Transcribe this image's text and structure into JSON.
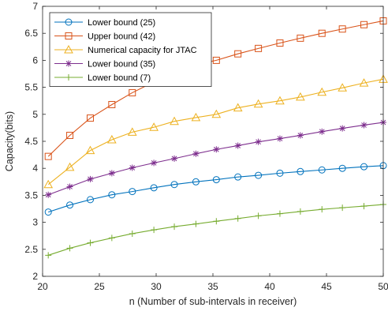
{
  "chart_data": {
    "type": "line",
    "title": "",
    "xlabel": "n (Number of sub-intervals in receiver)",
    "ylabel": "Capacity(bits)",
    "xlim": [
      20,
      50
    ],
    "ylim": [
      2,
      7
    ],
    "x_ticks": [
      "20",
      "25",
      "30",
      "35",
      "40",
      "45",
      "50"
    ],
    "y_ticks": [
      "2",
      "2.5",
      "3",
      "3.5",
      "4",
      "4.5",
      "5",
      "5.5",
      "6",
      "6.5",
      "7"
    ],
    "grid": false,
    "legend_position": "top-left",
    "x": [
      20.5,
      22.4,
      24.2,
      26.1,
      27.9,
      29.8,
      31.6,
      33.5,
      35.3,
      37.2,
      39.0,
      40.9,
      42.7,
      44.6,
      46.4,
      48.3,
      50.0
    ],
    "series": [
      {
        "name": "Lower bound (25)",
        "color": "#0072BD",
        "marker": "circle",
        "values": [
          3.19,
          3.32,
          3.42,
          3.51,
          3.57,
          3.64,
          3.7,
          3.75,
          3.79,
          3.84,
          3.87,
          3.91,
          3.94,
          3.97,
          4.0,
          4.03,
          4.05
        ]
      },
      {
        "name": "Upper bound (42)",
        "color": "#D95319",
        "marker": "square",
        "values": [
          4.22,
          4.61,
          4.93,
          5.18,
          5.4,
          5.6,
          5.77,
          5.92,
          6.0,
          6.12,
          6.22,
          6.32,
          6.41,
          6.5,
          6.58,
          6.66,
          6.73
        ]
      },
      {
        "name": "Numerical capacity for JTAC",
        "color": "#EDB120",
        "marker": "triangle",
        "values": [
          3.7,
          4.02,
          4.33,
          4.53,
          4.67,
          4.76,
          4.87,
          4.94,
          5.0,
          5.12,
          5.19,
          5.25,
          5.32,
          5.41,
          5.49,
          5.58,
          5.65
        ]
      },
      {
        "name": "Lower bound (35)",
        "color": "#7E2F8E",
        "marker": "asterisk",
        "values": [
          3.51,
          3.66,
          3.8,
          3.91,
          4.01,
          4.1,
          4.18,
          4.27,
          4.35,
          4.42,
          4.49,
          4.55,
          4.61,
          4.68,
          4.74,
          4.8,
          4.85
        ]
      },
      {
        "name": "Lower bound (7)",
        "color": "#77AC30",
        "marker": "plus",
        "values": [
          2.39,
          2.52,
          2.62,
          2.71,
          2.79,
          2.86,
          2.92,
          2.97,
          3.02,
          3.07,
          3.12,
          3.16,
          3.2,
          3.24,
          3.27,
          3.3,
          3.33
        ]
      }
    ]
  }
}
